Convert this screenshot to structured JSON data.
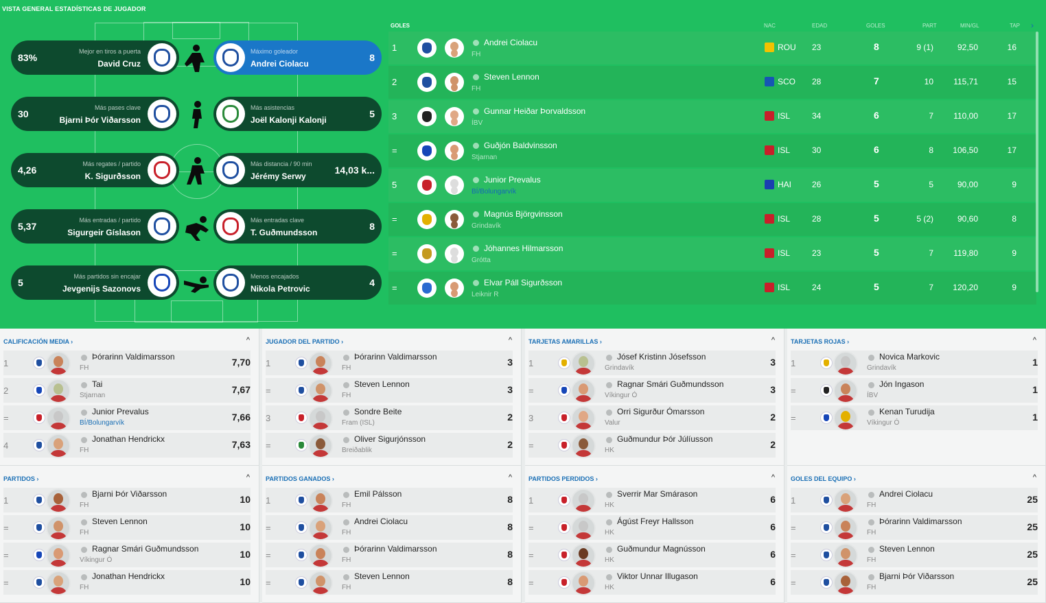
{
  "page_title": "VISTA GENERAL ESTADÍSTICAS DE JUGADOR",
  "highlights": [
    {
      "value": "83%",
      "caption": "Mejor en tiros a puerta",
      "name": "David Cruz",
      "color": "#1f4fa0"
    },
    {
      "value": "8",
      "caption": "Máximo goleador",
      "name": "Andrei Ciolacu",
      "color": "#1f4fa0"
    },
    {
      "value": "30",
      "caption": "Más pases clave",
      "name": "Bjarni Þór Viðarsson",
      "color": "#1f4fa0"
    },
    {
      "value": "5",
      "caption": "Más asistencias",
      "name": "Joël Kalonji Kalonji",
      "color": "#2a8a3a"
    },
    {
      "value": "4,26",
      "caption": "Más regates / partido",
      "name": "K. Sigurðsson",
      "color": "#c8202a"
    },
    {
      "value": "14,03 k...",
      "caption": "Más distancia / 90 min",
      "name": "Jérémy Serwy",
      "color": "#1f4fa0"
    },
    {
      "value": "5,37",
      "caption": "Más entradas / partido",
      "name": "Sigurgeir Gíslason",
      "color": "#1f4fa0"
    },
    {
      "value": "8",
      "caption": "Más entradas clave",
      "name": "T. Guðmundsson",
      "color": "#c8202a"
    },
    {
      "value": "5",
      "caption": "Más partidos sin encajar",
      "name": "Jevgenijs Sazonovs",
      "color": "#1646b8"
    },
    {
      "value": "4",
      "caption": "Menos encajados",
      "name": "Nikola Petrovic",
      "color": "#1f4fa0"
    }
  ],
  "goals_table": {
    "headers": {
      "goles": "GOLES",
      "nac": "NAC",
      "edad": "EDAD",
      "goles2": "GOLES",
      "part": "PART",
      "min": "MIN/GL",
      "tap": "TAP",
      "next": "›"
    },
    "rows": [
      {
        "rank": "1",
        "name": "Andrei Ciolacu",
        "team": "FH",
        "nat": "ROU",
        "age": "23",
        "goals": "8",
        "part": "9 (1)",
        "min": "92,50",
        "tap": "16",
        "crest": "#1f4fa0",
        "face": "#d9a27a",
        "flag": "#f2c200"
      },
      {
        "rank": "2",
        "name": "Steven Lennon",
        "team": "FH",
        "nat": "SCO",
        "age": "28",
        "goals": "7",
        "part": "10",
        "min": "115,71",
        "tap": "15",
        "crest": "#1f4fa0",
        "face": "#d0936a",
        "flag": "#1656b4"
      },
      {
        "rank": "3",
        "name": "Gunnar Heiðar Þorvaldsson",
        "team": "ÍBV",
        "nat": "ISL",
        "age": "34",
        "goals": "6",
        "part": "7",
        "min": "110,00",
        "tap": "17",
        "crest": "#222222",
        "face": "#e0a886",
        "flag": "#c8202a"
      },
      {
        "rank": "=",
        "name": "Guðjón Baldvinsson",
        "team": "Stjarnan",
        "nat": "ISL",
        "age": "30",
        "goals": "6",
        "part": "8",
        "min": "106,50",
        "tap": "17",
        "crest": "#1646b8",
        "face": "#d99a74",
        "flag": "#c8202a"
      },
      {
        "rank": "5",
        "name": "Junior Prevalus",
        "team": "BÍ/Bolungarvík",
        "nat": "HAI",
        "age": "26",
        "goals": "5",
        "part": "5",
        "min": "90,00",
        "tap": "9",
        "crest": "#c8202a",
        "face": "#dddddd",
        "flag": "#1a3fb0",
        "link": true
      },
      {
        "rank": "=",
        "name": "Magnús Björgvinsson",
        "team": "Grindavík",
        "nat": "ISL",
        "age": "28",
        "goals": "5",
        "part": "5 (2)",
        "min": "90,60",
        "tap": "8",
        "crest": "#e3b000",
        "face": "#8a5a3a",
        "flag": "#c8202a"
      },
      {
        "rank": "=",
        "name": "Jóhannes Hilmarsson",
        "team": "Grótta",
        "nat": "ISL",
        "age": "23",
        "goals": "5",
        "part": "7",
        "min": "119,80",
        "tap": "9",
        "crest": "#c49a20",
        "face": "#dddddd",
        "flag": "#c8202a"
      },
      {
        "rank": "=",
        "name": "Elvar Páll Sigurðsson",
        "team": "Leiknir R",
        "nat": "ISL",
        "age": "24",
        "goals": "5",
        "part": "7",
        "min": "120,20",
        "tap": "9",
        "crest": "#2a6ad0",
        "face": "#d89a74",
        "flag": "#c8202a"
      }
    ]
  },
  "panels": [
    {
      "title": "CALIFICACIÓN MEDIA ›",
      "caret": "^",
      "rows": [
        {
          "rank": "1",
          "name": "Þórarinn Valdimarsson",
          "team": "FH",
          "value": "7,70",
          "crest": "#1f4fa0",
          "face": "#c9835a"
        },
        {
          "rank": "2",
          "name": "Tai",
          "team": "Stjarnan",
          "value": "7,67",
          "crest": "#1646b8",
          "face": "#b8c090"
        },
        {
          "rank": "=",
          "name": "Junior Prevalus",
          "team": "BÍ/Bolungarvík",
          "value": "7,66",
          "crest": "#c8202a",
          "face": "#c8c8c8",
          "link": true
        },
        {
          "rank": "4",
          "name": "Jonathan Hendrickx",
          "team": "FH",
          "value": "7,63",
          "crest": "#1f4fa0",
          "face": "#d9a27a"
        }
      ]
    },
    {
      "title": "JUGADOR DEL PARTIDO ›",
      "caret": "^",
      "rows": [
        {
          "rank": "1",
          "name": "Þórarinn Valdimarsson",
          "team": "FH",
          "value": "3",
          "crest": "#1f4fa0",
          "face": "#c9835a"
        },
        {
          "rank": "=",
          "name": "Steven Lennon",
          "team": "FH",
          "value": "3",
          "crest": "#1f4fa0",
          "face": "#d0936a"
        },
        {
          "rank": "3",
          "name": "Sondre Beite",
          "team": "Fram (ISL)",
          "value": "2",
          "crest": "#c8202a",
          "face": "#c8c8c8"
        },
        {
          "rank": "=",
          "name": "Oliver Sigurjónsson",
          "team": "Breiðablik",
          "value": "2",
          "crest": "#2a8a3a",
          "face": "#8a5a3a"
        }
      ]
    },
    {
      "title": "TARJETAS AMARILLAS ›",
      "caret": "^",
      "rows": [
        {
          "rank": "1",
          "name": "Jósef Kristinn Jósefsson",
          "team": "Grindavík",
          "value": "3",
          "crest": "#e3b000",
          "face": "#b8c090"
        },
        {
          "rank": "=",
          "name": "Ragnar Smári Guðmundsson",
          "team": "Víkingur Ó",
          "value": "3",
          "crest": "#1646b8",
          "face": "#d99a74"
        },
        {
          "rank": "3",
          "name": "Orri Sigurður Ómarsson",
          "team": "Valur",
          "value": "2",
          "crest": "#c8202a",
          "face": "#e0a886"
        },
        {
          "rank": "=",
          "name": "Guðmundur Þór Júlíusson",
          "team": "HK",
          "value": "2",
          "crest": "#c8202a",
          "face": "#8a5a3a"
        }
      ]
    },
    {
      "title": "TARJETAS ROJAS ›",
      "caret": "^",
      "rows": [
        {
          "rank": "1",
          "name": "Novica Markovic",
          "team": "Grindavík",
          "value": "1",
          "crest": "#e3b000",
          "face": "#c8c8c8"
        },
        {
          "rank": "=",
          "name": "Jón Ingason",
          "team": "ÍBV",
          "value": "1",
          "crest": "#222222",
          "face": "#c9835a"
        },
        {
          "rank": "=",
          "name": "Kenan Turudija",
          "team": "Víkingur Ó",
          "value": "1",
          "crest": "#1646b8",
          "face": "#e3b000"
        }
      ]
    },
    {
      "title": "PARTIDOS ›",
      "caret": "^",
      "rows": [
        {
          "rank": "1",
          "name": "Bjarni Þór Viðarsson",
          "team": "FH",
          "value": "10",
          "crest": "#1f4fa0",
          "face": "#a8623a"
        },
        {
          "rank": "=",
          "name": "Steven Lennon",
          "team": "FH",
          "value": "10",
          "crest": "#1f4fa0",
          "face": "#d0936a"
        },
        {
          "rank": "=",
          "name": "Ragnar Smári Guðmundsson",
          "team": "Víkingur Ó",
          "value": "10",
          "crest": "#1646b8",
          "face": "#d99a74"
        },
        {
          "rank": "=",
          "name": "Jonathan Hendrickx",
          "team": "FH",
          "value": "10",
          "crest": "#1f4fa0",
          "face": "#d9a27a"
        }
      ]
    },
    {
      "title": "PARTIDOS GANADOS ›",
      "caret": "^",
      "rows": [
        {
          "rank": "1",
          "name": "Emil Pálsson",
          "team": "FH",
          "value": "8",
          "crest": "#1f4fa0",
          "face": "#c9835a"
        },
        {
          "rank": "=",
          "name": "Andrei Ciolacu",
          "team": "FH",
          "value": "8",
          "crest": "#1f4fa0",
          "face": "#d9a27a"
        },
        {
          "rank": "=",
          "name": "Þórarinn Valdimarsson",
          "team": "FH",
          "value": "8",
          "crest": "#1f4fa0",
          "face": "#c9835a"
        },
        {
          "rank": "=",
          "name": "Steven Lennon",
          "team": "FH",
          "value": "8",
          "crest": "#1f4fa0",
          "face": "#d0936a"
        }
      ]
    },
    {
      "title": "PARTIDOS PERDIDOS ›",
      "caret": "^",
      "rows": [
        {
          "rank": "1",
          "name": "Sverrir Mar Smárason",
          "team": "HK",
          "value": "6",
          "crest": "#c8202a",
          "face": "#c8c8c8"
        },
        {
          "rank": "=",
          "name": "Ágúst Freyr Hallsson",
          "team": "HK",
          "value": "6",
          "crest": "#c8202a",
          "face": "#c8c8c8"
        },
        {
          "rank": "=",
          "name": "Guðmundur Magnússon",
          "team": "HK",
          "value": "6",
          "crest": "#c8202a",
          "face": "#6a3a22"
        },
        {
          "rank": "=",
          "name": "Viktor Unnar Illugason",
          "team": "HK",
          "value": "6",
          "crest": "#c8202a",
          "face": "#d99a74"
        }
      ]
    },
    {
      "title": "GOLES DEL EQUIPO ›",
      "caret": "^",
      "rows": [
        {
          "rank": "1",
          "name": "Andrei Ciolacu",
          "team": "FH",
          "value": "25",
          "crest": "#1f4fa0",
          "face": "#d9a27a"
        },
        {
          "rank": "=",
          "name": "Þórarinn Valdimarsson",
          "team": "FH",
          "value": "25",
          "crest": "#1f4fa0",
          "face": "#c9835a"
        },
        {
          "rank": "=",
          "name": "Steven Lennon",
          "team": "FH",
          "value": "25",
          "crest": "#1f4fa0",
          "face": "#d0936a"
        },
        {
          "rank": "=",
          "name": "Bjarni Þór Viðarsson",
          "team": "FH",
          "value": "25",
          "crest": "#1f4fa0",
          "face": "#a8623a"
        }
      ]
    }
  ]
}
